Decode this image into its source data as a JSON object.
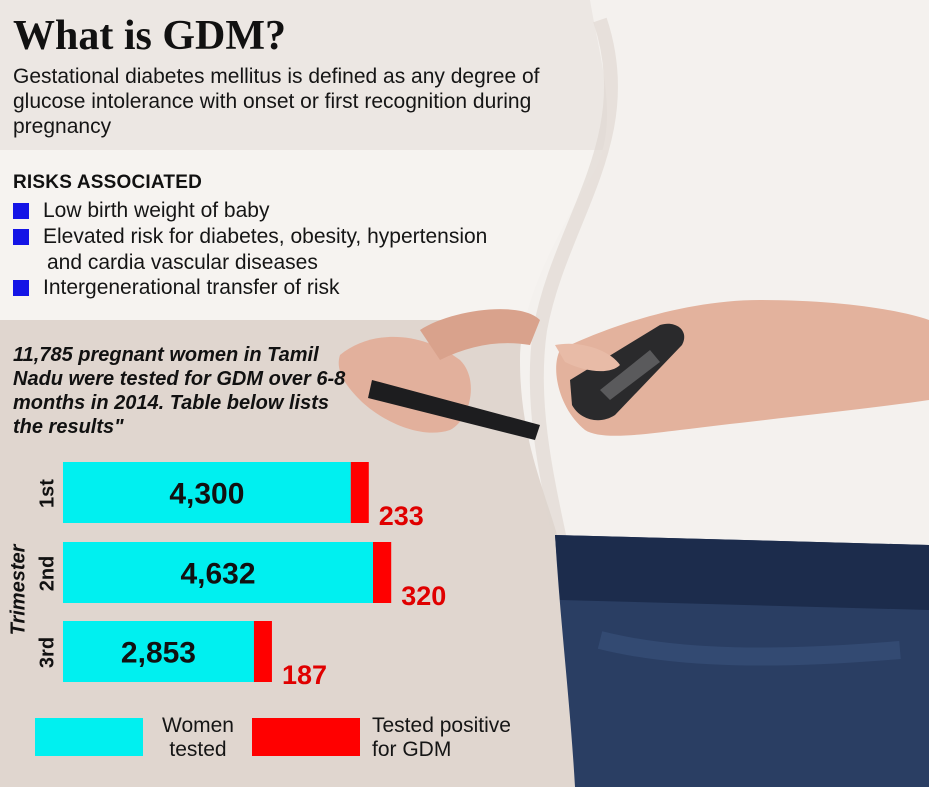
{
  "title": "What is GDM?",
  "subtitle": "Gestational diabetes mellitus is defined as any degree of glucose intolerance with onset or first recognition during pregnancy",
  "risks": {
    "heading": "RISKS ASSOCIATED",
    "items": [
      {
        "line1": "Low birth weight of baby",
        "line2": ""
      },
      {
        "line1": "Elevated risk for diabetes, obesity, hypertension",
        "line2": "and cardia vascular diseases"
      },
      {
        "line1": "Intergenerational transfer of risk",
        "line2": ""
      }
    ]
  },
  "study_note": "11,785 pregnant women in Tamil Nadu were tested for GDM over 6-8 months in 2014. Table below lists the results\"",
  "colors": {
    "tested": "#00f0f0",
    "gdm": "#ff0000",
    "bullet": "#1414e6"
  },
  "chart_data": {
    "type": "bar",
    "orientation": "horizontal",
    "stacked": true,
    "ylabel": "Trimester",
    "categories": [
      "1st",
      "2nd",
      "3rd"
    ],
    "series": [
      {
        "name": "Women tested",
        "values": [
          4300,
          4632,
          2853
        ],
        "labels": [
          "4,300",
          "4,632",
          "2,853"
        ]
      },
      {
        "name": "Tested positive for GDM",
        "values": [
          233,
          320,
          187
        ],
        "labels": [
          "233",
          "320",
          "187"
        ]
      }
    ],
    "legend": {
      "position": "bottom",
      "items": [
        {
          "line1": "Women",
          "line2": "tested"
        },
        {
          "line1": "Tested positive",
          "line2": "for GDM"
        }
      ]
    }
  }
}
